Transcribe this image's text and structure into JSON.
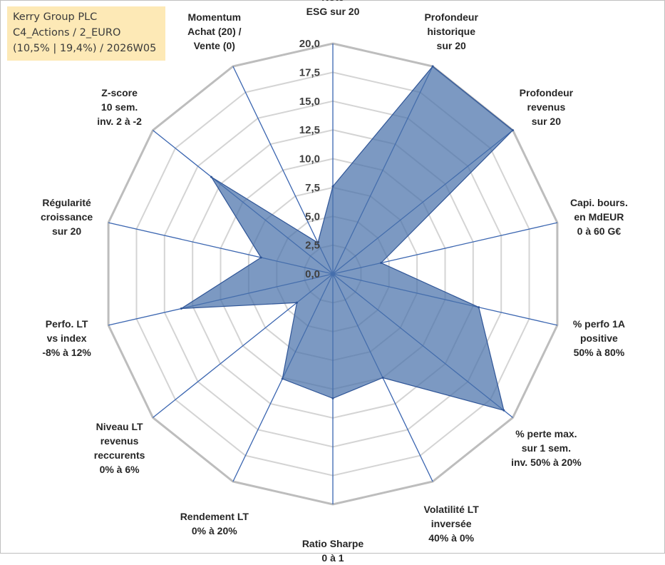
{
  "info_box": {
    "line1": "Kerry Group PLC",
    "line2": "C4_Actions / 2_EURO",
    "line3": "(10,5% | 19,4%) / 2026W05"
  },
  "chart_data": {
    "type": "radar",
    "title": "Kerry Group PLC",
    "r_range": [
      0,
      20
    ],
    "r_ticks": [
      "0,0",
      "2,5",
      "5,0",
      "7,5",
      "10,0",
      "12,5",
      "15,0",
      "17,5",
      "20,0"
    ],
    "grid": true,
    "series_color": "#4a72aa",
    "axes": [
      {
        "name": "axis-note-esg",
        "label": [
          "Note",
          "ESG sur 20"
        ],
        "value": 7.6
      },
      {
        "name": "axis-profondeur-historique",
        "label": [
          "Profondeur",
          "historique",
          "sur 20"
        ],
        "value": 20.0
      },
      {
        "name": "axis-profondeur-revenus",
        "label": [
          "Profondeur",
          "revenus",
          "sur 20"
        ],
        "value": 20.0
      },
      {
        "name": "axis-capi-bours",
        "label": [
          "Capi. bours.",
          "en MdEUR",
          "0 à 60 G€"
        ],
        "value": 4.3
      },
      {
        "name": "axis-perfo-1a",
        "label": [
          "% perfo 1A",
          "positive",
          "50% à 80%"
        ],
        "value": 13.0
      },
      {
        "name": "axis-perte-max",
        "label": [
          "% perte max.",
          "sur 1 sem.",
          "inv. 50% à 20%"
        ],
        "value": 19.0
      },
      {
        "name": "axis-volatilite-lt",
        "label": [
          "Volatilité LT",
          "inversée",
          "40% à 0%"
        ],
        "value": 10.0
      },
      {
        "name": "axis-ratio-sharpe",
        "label": [
          "Ratio Sharpe",
          "0 à 1"
        ],
        "value": 10.8
      },
      {
        "name": "axis-rendement-lt",
        "label": [
          "Rendement LT",
          "0% à 20%"
        ],
        "value": 10.1
      },
      {
        "name": "axis-niveau-lt-revenus",
        "label": [
          "Niveau LT",
          "revenus",
          "reccurents",
          "0% à 6%"
        ],
        "value": 4.0
      },
      {
        "name": "axis-perfo-lt",
        "label": [
          "Perfo. LT",
          "vs index",
          "-8% à 12%"
        ],
        "value": 13.5
      },
      {
        "name": "axis-regularite-croissance",
        "label": [
          "Régularité",
          "croissance",
          "sur 20"
        ],
        "value": 6.4
      },
      {
        "name": "axis-z-score",
        "label": [
          "Z-score",
          "10 sem.",
          "inv. 2 à -2"
        ],
        "value": 13.5
      },
      {
        "name": "axis-momentum",
        "label": [
          "Momentum",
          "Achat (20) /",
          "Vente (0)"
        ],
        "value": 3.0
      }
    ]
  }
}
